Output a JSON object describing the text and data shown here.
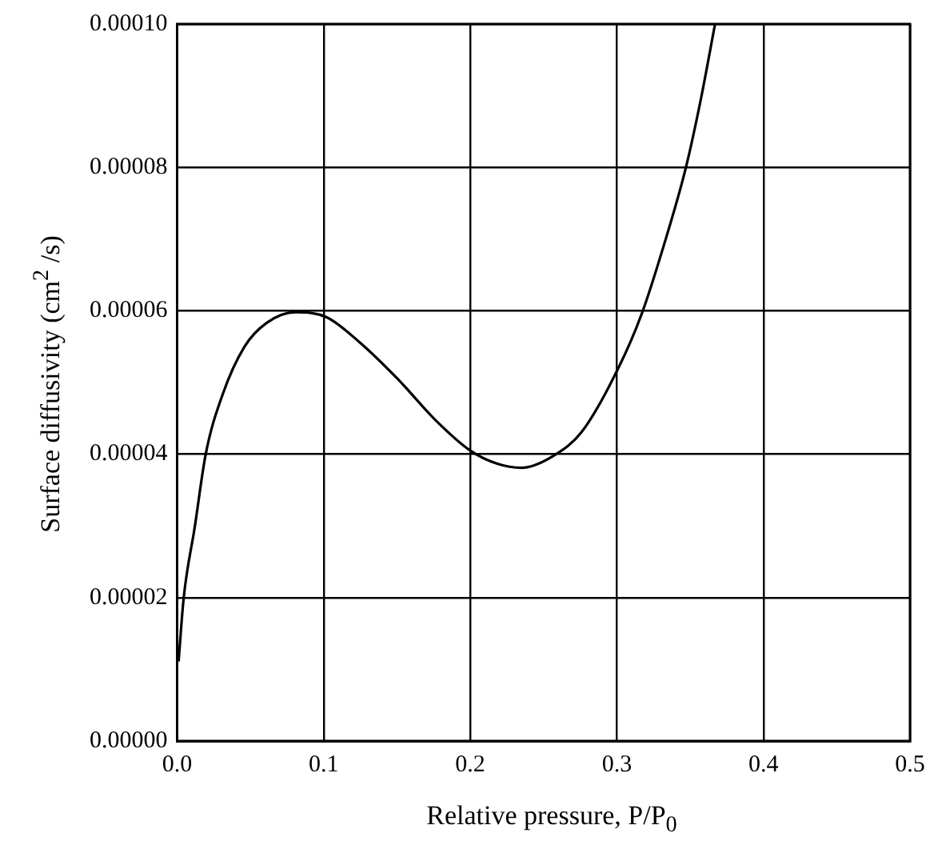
{
  "chart_data": {
    "type": "line",
    "xlabel": "Relative pressure, P/P$_{0}$",
    "ylabel": "Surface diffusivity (cm$^{2}$ /s)",
    "xlim": [
      0,
      0.5
    ],
    "ylim": [
      0,
      0.0001
    ],
    "xticks": [
      {
        "value": 0,
        "label": "0.0"
      },
      {
        "value": 0.1,
        "label": "0.1"
      },
      {
        "value": 0.2,
        "label": "0.2"
      },
      {
        "value": 0.3,
        "label": "0.3"
      },
      {
        "value": 0.4,
        "label": "0.4"
      },
      {
        "value": 0.5,
        "label": "0.5"
      }
    ],
    "yticks": [
      {
        "value": 0,
        "label": "0.00000"
      },
      {
        "value": 2e-05,
        "label": "0.00002"
      },
      {
        "value": 4e-05,
        "label": "0.00004"
      },
      {
        "value": 6e-05,
        "label": "0.00006"
      },
      {
        "value": 8e-05,
        "label": "0.00008"
      },
      {
        "value": 0.0001,
        "label": "0.00010"
      }
    ],
    "grid": true,
    "legend": false,
    "marker": "none",
    "line_style": "solid",
    "series": [
      {
        "color": "#000000",
        "x": [
          0.001,
          0.0045,
          0.012,
          0.0195,
          0.031,
          0.046,
          0.061,
          0.081,
          0.102,
          0.124,
          0.15,
          0.177,
          0.2,
          0.218,
          0.235,
          0.257,
          0.276,
          0.301,
          0.317,
          0.332,
          0.347,
          0.357,
          0.367
        ],
        "values": [
          1.11e-05,
          2e-05,
          2.98e-05,
          4e-05,
          4.83e-05,
          5.5e-05,
          5.83e-05,
          5.98e-05,
          5.91e-05,
          5.57e-05,
          5.06e-05,
          4.46e-05,
          4.05e-05,
          3.87e-05,
          3.81e-05,
          3.98e-05,
          4.31e-05,
          5.2e-05,
          5.96e-05,
          6.91e-05,
          7.99e-05,
          8.92e-05,
          0.0001
        ]
      }
    ]
  }
}
